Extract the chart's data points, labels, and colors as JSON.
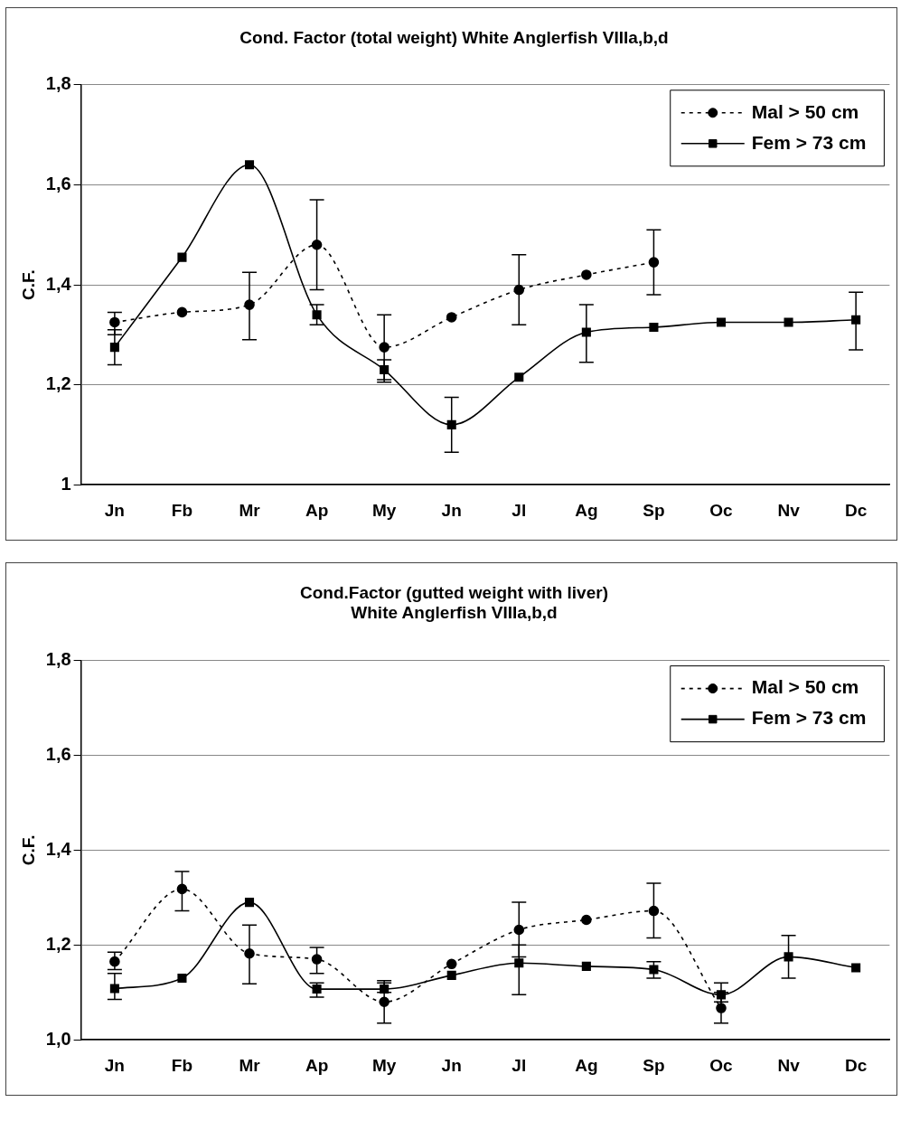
{
  "chart_data": [
    {
      "type": "line",
      "title": "Cond. Factor (total weight) White Anglerfish VIIIa,b,d",
      "ylabel": "C.F.",
      "categories": [
        "Jn",
        "Fb",
        "Mr",
        "Ap",
        "My",
        "Jn",
        "Jl",
        "Ag",
        "Sp",
        "Oc",
        "Nv",
        "Dc"
      ],
      "series": [
        {
          "name": "Mal > 50 cm",
          "color": "#000000",
          "marker": "circle",
          "line_style": "dashed",
          "values": [
            1.325,
            1.345,
            1.36,
            1.48,
            1.275,
            1.335,
            1.39,
            1.42,
            1.445,
            null,
            null,
            null
          ],
          "errors": [
            [
              1.3,
              1.345
            ],
            null,
            [
              1.29,
              1.425
            ],
            [
              1.39,
              1.57
            ],
            [
              1.21,
              1.34
            ],
            null,
            [
              1.32,
              1.46
            ],
            null,
            [
              1.38,
              1.51
            ],
            null,
            null,
            null
          ]
        },
        {
          "name": "Fem > 73 cm",
          "color": "#000000",
          "marker": "square",
          "line_style": "solid",
          "values": [
            1.275,
            1.455,
            1.64,
            1.34,
            1.23,
            1.12,
            1.215,
            1.305,
            1.315,
            1.325,
            1.325,
            1.33
          ],
          "errors": [
            [
              1.24,
              1.31
            ],
            null,
            null,
            [
              1.32,
              1.36
            ],
            [
              1.205,
              1.25
            ],
            [
              1.065,
              1.175
            ],
            null,
            [
              1.245,
              1.36
            ],
            null,
            null,
            null,
            [
              1.27,
              1.385
            ]
          ]
        }
      ],
      "ylim": [
        1,
        1.8
      ],
      "yticks": [
        {
          "value": 1,
          "label": "1"
        },
        {
          "value": 1.2,
          "label": "1,2"
        },
        {
          "value": 1.4,
          "label": "1,4"
        },
        {
          "value": 1.6,
          "label": "1,6"
        },
        {
          "value": 1.8,
          "label": "1,8"
        }
      ],
      "grid": "y",
      "legend": "top right"
    },
    {
      "type": "line",
      "title": "Cond.Factor (gutted weight with liver)\nWhite Anglerfish VIIIa,b,d",
      "ylabel": "C.F.",
      "categories": [
        "Jn",
        "Fb",
        "Mr",
        "Ap",
        "My",
        "Jn",
        "Jl",
        "Ag",
        "Sp",
        "Oc",
        "Nv",
        "Dc"
      ],
      "series": [
        {
          "name": "Mal > 50 cm",
          "color": "#000000",
          "marker": "circle",
          "line_style": "dashed",
          "values": [
            1.165,
            1.318,
            1.182,
            1.17,
            1.08,
            1.16,
            1.232,
            1.253,
            1.272,
            1.067,
            null,
            null
          ],
          "errors": [
            [
              1.148,
              1.185
            ],
            [
              1.272,
              1.355
            ],
            [
              1.118,
              1.242
            ],
            [
              1.14,
              1.195
            ],
            [
              1.035,
              1.12
            ],
            null,
            [
              1.175,
              1.29
            ],
            null,
            [
              1.215,
              1.33
            ],
            [
              1.035,
              1.1
            ],
            null,
            null
          ]
        },
        {
          "name": "Fem > 73 cm",
          "color": "#000000",
          "marker": "square",
          "line_style": "solid",
          "values": [
            1.108,
            1.13,
            1.29,
            1.107,
            1.107,
            1.136,
            1.162,
            1.155,
            1.148,
            1.095,
            1.175,
            1.152
          ],
          "errors": [
            [
              1.085,
              1.14
            ],
            null,
            null,
            [
              1.09,
              1.12
            ],
            [
              1.1,
              1.125
            ],
            null,
            [
              1.095,
              1.2
            ],
            null,
            [
              1.13,
              1.165
            ],
            [
              1.08,
              1.12
            ],
            [
              1.13,
              1.22
            ],
            null
          ]
        }
      ],
      "ylim": [
        1,
        1.8
      ],
      "yticks": [
        {
          "value": 1,
          "label": "1,0"
        },
        {
          "value": 1.2,
          "label": "1,2"
        },
        {
          "value": 1.4,
          "label": "1,4"
        },
        {
          "value": 1.6,
          "label": "1,6"
        },
        {
          "value": 1.8,
          "label": "1,8"
        }
      ],
      "grid": "y",
      "legend": "top right"
    }
  ]
}
